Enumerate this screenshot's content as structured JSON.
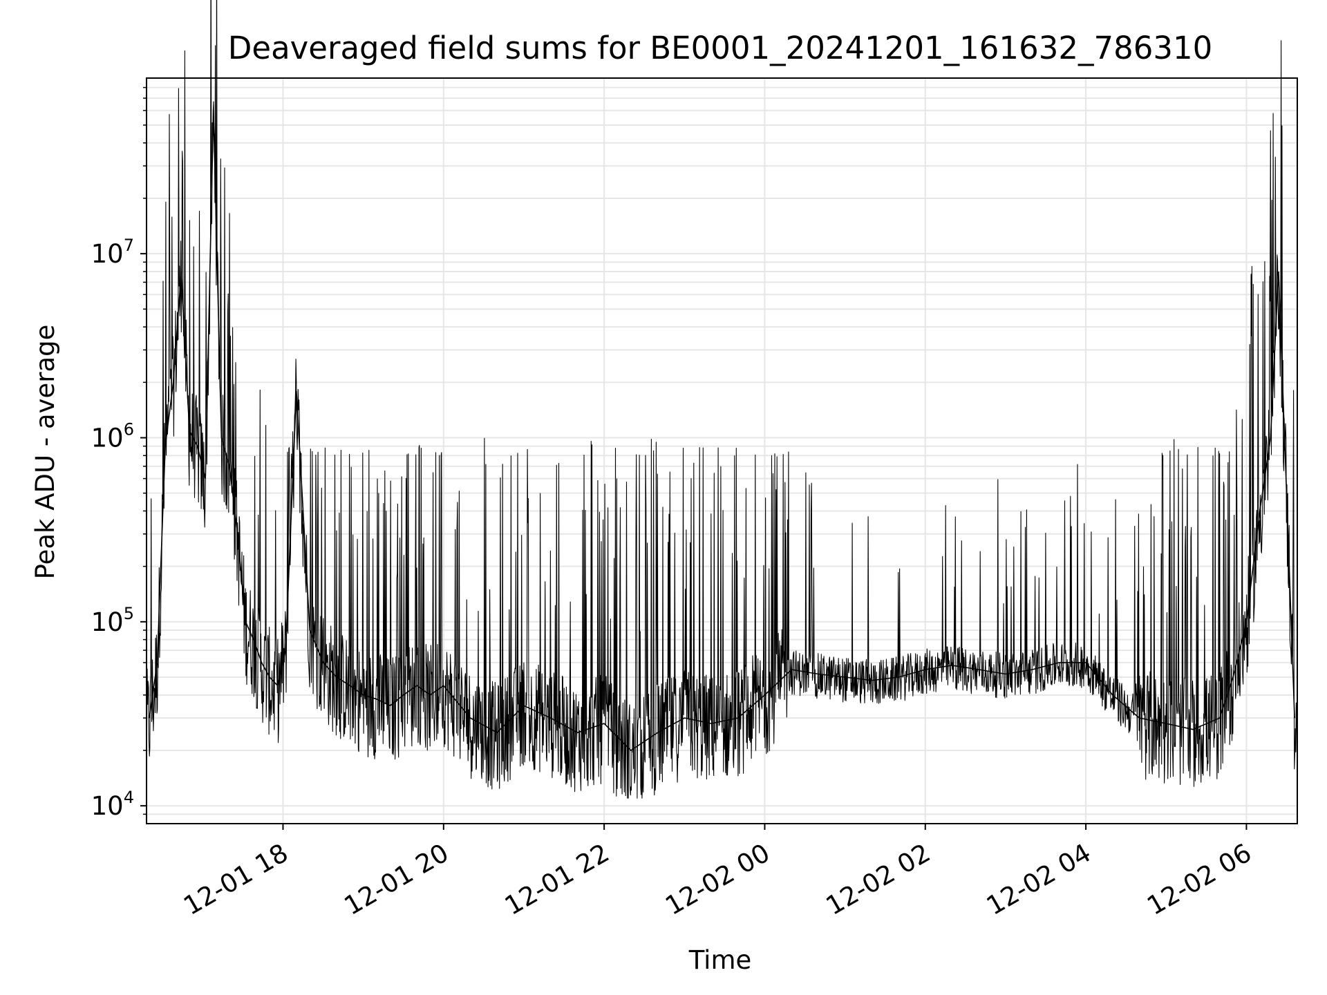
{
  "chart_data": {
    "type": "line",
    "title": "Deaveraged field sums for BE0001_20241201_161632_786310",
    "xlabel": "Time",
    "ylabel": "Peak ADU - average",
    "yscale": "log",
    "xlim": [
      "2024-12-01 16:18",
      "2024-12-02 06:38"
    ],
    "ylim": [
      8000,
      90000000
    ],
    "grid": true,
    "x_tick_labels": [
      "12-01 18",
      "12-01 20",
      "12-01 22",
      "12-02 00",
      "12-02 02",
      "12-02 04",
      "12-02 06"
    ],
    "x_tick_times": [
      "2024-12-01 18:00",
      "2024-12-01 20:00",
      "2024-12-01 22:00",
      "2024-12-02 00:00",
      "2024-12-02 02:00",
      "2024-12-02 04:00",
      "2024-12-02 06:00"
    ],
    "y_ticks": [
      {
        "value": 10000,
        "base": "10",
        "exp": "4"
      },
      {
        "value": 100000,
        "base": "10",
        "exp": "5"
      },
      {
        "value": 1000000,
        "base": "10",
        "exp": "6"
      },
      {
        "value": 10000000,
        "base": "10",
        "exp": "7"
      }
    ],
    "series": [
      {
        "color": "#000000",
        "x": [
          "2024-12-01 16:20",
          "2024-12-01 16:26",
          "2024-12-01 16:32",
          "2024-12-01 16:38",
          "2024-12-01 16:44",
          "2024-12-01 16:50",
          "2024-12-01 16:56",
          "2024-12-01 17:02",
          "2024-12-01 17:08",
          "2024-12-01 17:14",
          "2024-12-01 17:20",
          "2024-12-01 17:26",
          "2024-12-01 17:32",
          "2024-12-01 17:38",
          "2024-12-01 17:44",
          "2024-12-01 17:50",
          "2024-12-01 17:56",
          "2024-12-01 18:02",
          "2024-12-01 18:10",
          "2024-12-01 18:20",
          "2024-12-01 18:30",
          "2024-12-01 18:40",
          "2024-12-01 18:50",
          "2024-12-01 19:00",
          "2024-12-01 19:10",
          "2024-12-01 19:20",
          "2024-12-01 19:30",
          "2024-12-01 19:40",
          "2024-12-01 19:50",
          "2024-12-01 20:00",
          "2024-12-01 20:20",
          "2024-12-01 20:40",
          "2024-12-01 21:00",
          "2024-12-01 21:20",
          "2024-12-01 21:40",
          "2024-12-01 22:00",
          "2024-12-01 22:20",
          "2024-12-01 22:40",
          "2024-12-01 23:00",
          "2024-12-01 23:20",
          "2024-12-01 23:40",
          "2024-12-02 00:00",
          "2024-12-02 00:20",
          "2024-12-02 00:40",
          "2024-12-02 01:00",
          "2024-12-02 01:20",
          "2024-12-02 01:40",
          "2024-12-02 02:00",
          "2024-12-02 02:20",
          "2024-12-02 02:40",
          "2024-12-02 03:00",
          "2024-12-02 03:20",
          "2024-12-02 03:40",
          "2024-12-02 04:00",
          "2024-12-02 04:20",
          "2024-12-02 04:40",
          "2024-12-02 05:00",
          "2024-12-02 05:20",
          "2024-12-02 05:40",
          "2024-12-02 05:50",
          "2024-12-02 06:00",
          "2024-12-02 06:10",
          "2024-12-02 06:18",
          "2024-12-02 06:24",
          "2024-12-02 06:30",
          "2024-12-02 06:36"
        ],
        "y": [
          30000,
          60000,
          900000,
          2000000,
          8000000,
          1100000,
          900000,
          600000,
          60000000,
          1000000,
          700000,
          300000,
          100000,
          80000,
          60000,
          50000,
          45000,
          70000,
          1800000,
          90000,
          60000,
          50000,
          45000,
          40000,
          38000,
          35000,
          40000,
          45000,
          40000,
          45000,
          30000,
          25000,
          35000,
          30000,
          25000,
          28000,
          20000,
          25000,
          30000,
          28000,
          30000,
          40000,
          55000,
          52000,
          50000,
          48000,
          50000,
          55000,
          58000,
          55000,
          52000,
          55000,
          60000,
          60000,
          40000,
          30000,
          28000,
          26000,
          30000,
          50000,
          100000,
          400000,
          1000000,
          8000000,
          500000,
          30000
        ]
      }
    ]
  }
}
